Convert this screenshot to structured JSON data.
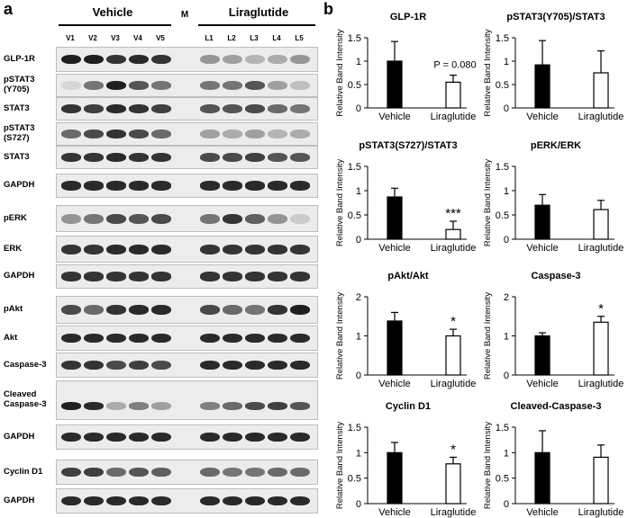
{
  "panel_a": {
    "letter": "a",
    "group_vehicle": "Vehicle",
    "group_liraglutide": "Liraglutide",
    "marker_label": "M",
    "lanes": [
      "V1",
      "V2",
      "V3",
      "V4",
      "V5",
      "L1",
      "L2",
      "L3",
      "L4",
      "L5"
    ],
    "blots": [
      {
        "label": "GLP-1R"
      },
      {
        "label": "pSTAT3 (Y705)"
      },
      {
        "label": "STAT3"
      },
      {
        "label": "pSTAT3 (S727)"
      },
      {
        "label": "STAT3"
      },
      {
        "label": "GAPDH"
      },
      {
        "label": "pERK"
      },
      {
        "label": "ERK"
      },
      {
        "label": "GAPDH"
      },
      {
        "label": "pAkt"
      },
      {
        "label": "Akt"
      },
      {
        "label": "Caspase-3"
      },
      {
        "label": "Cleaved Caspase-3"
      },
      {
        "label": "GAPDH"
      },
      {
        "label": "Cyclin D1"
      },
      {
        "label": "GAPDH"
      }
    ]
  },
  "panel_b": {
    "letter": "b"
  },
  "chart_data": [
    {
      "type": "bar",
      "title": "GLP-1R",
      "categories": [
        "Vehicle",
        "Liraglutide"
      ],
      "values": [
        1.0,
        0.55
      ],
      "errors": [
        0.42,
        0.15
      ],
      "ylabel": "Relative Band Intensity",
      "ylim": [
        0,
        1.5
      ],
      "yticks": [
        "0",
        "0.5",
        "1",
        "1.5"
      ],
      "annotation": "P = 0.080",
      "colors": [
        "#000000",
        "#ffffff"
      ]
    },
    {
      "type": "bar",
      "title": "pSTAT3(Y705)/STAT3",
      "categories": [
        "Vehicle",
        "Liraglutide"
      ],
      "values": [
        0.92,
        0.75
      ],
      "errors": [
        0.52,
        0.47
      ],
      "ylabel": "Relative Band Intensity",
      "ylim": [
        0,
        1.5
      ],
      "yticks": [
        "0",
        "0.5",
        "1",
        "1.5"
      ],
      "annotation": "",
      "colors": [
        "#000000",
        "#ffffff"
      ]
    },
    {
      "type": "bar",
      "title": "pSTAT3(S727)/STAT3",
      "categories": [
        "Vehicle",
        "Liraglutide"
      ],
      "values": [
        0.87,
        0.2
      ],
      "errors": [
        0.18,
        0.17
      ],
      "ylabel": "Relative Band Intensity",
      "ylim": [
        0,
        1.5
      ],
      "yticks": [
        "0",
        "0.5",
        "1",
        "1.5"
      ],
      "annotation": "***",
      "colors": [
        "#000000",
        "#ffffff"
      ]
    },
    {
      "type": "bar",
      "title": "pERK/ERK",
      "categories": [
        "Vehicle",
        "Liraglutide"
      ],
      "values": [
        0.7,
        0.61
      ],
      "errors": [
        0.22,
        0.19
      ],
      "ylabel": "Relative Band Intensity",
      "ylim": [
        0,
        1.5
      ],
      "yticks": [
        "0",
        "0.5",
        "1",
        "1.5"
      ],
      "annotation": "",
      "colors": [
        "#000000",
        "#ffffff"
      ]
    },
    {
      "type": "bar",
      "title": "pAkt/Akt",
      "categories": [
        "Vehicle",
        "Liraglutide"
      ],
      "values": [
        1.38,
        1.0
      ],
      "errors": [
        0.22,
        0.17
      ],
      "ylabel": "Relative Band Intensity",
      "ylim": [
        0,
        2
      ],
      "yticks": [
        "0",
        "1",
        "2"
      ],
      "annotation": "*",
      "colors": [
        "#000000",
        "#ffffff"
      ]
    },
    {
      "type": "bar",
      "title": "Caspase-3",
      "categories": [
        "Vehicle",
        "Liraglutide"
      ],
      "values": [
        1.0,
        1.35
      ],
      "errors": [
        0.08,
        0.15
      ],
      "ylabel": "Relative Band Intensity",
      "ylim": [
        0,
        2
      ],
      "yticks": [
        "0",
        "1",
        "2"
      ],
      "annotation": "*",
      "colors": [
        "#000000",
        "#ffffff"
      ]
    },
    {
      "type": "bar",
      "title": "Cyclin D1",
      "categories": [
        "Vehicle",
        "Liraglutide"
      ],
      "values": [
        1.0,
        0.78
      ],
      "errors": [
        0.2,
        0.13
      ],
      "ylabel": "Relative Band Intensity",
      "ylim": [
        0,
        1.5
      ],
      "yticks": [
        "0",
        "0.5",
        "1",
        "1.5"
      ],
      "annotation": "*",
      "colors": [
        "#000000",
        "#ffffff"
      ]
    },
    {
      "type": "bar",
      "title": "Cleaved-Caspase-3",
      "categories": [
        "Vehicle",
        "Liraglutide"
      ],
      "values": [
        1.0,
        0.91
      ],
      "errors": [
        0.43,
        0.24
      ],
      "ylabel": "Relative Band Intensity",
      "ylim": [
        0,
        1.5
      ],
      "yticks": [
        "0",
        "0.5",
        "1",
        "1.5"
      ],
      "annotation": "",
      "colors": [
        "#000000",
        "#ffffff"
      ]
    }
  ]
}
